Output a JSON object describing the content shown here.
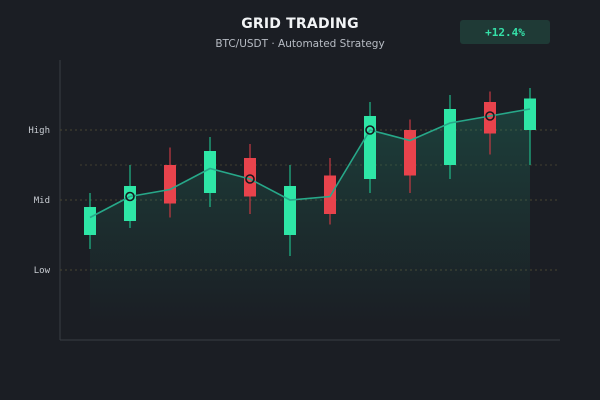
{
  "header": {
    "title": "GRID TRADING",
    "subtitle": "BTC/USDT · Automated Strategy",
    "badge": "+12.4%"
  },
  "colors": {
    "background": "#1b1e24",
    "bullish": "#2ee6a6",
    "bearish": "#e8434c",
    "line": "#27a889",
    "grid": "#4a4632",
    "badge_bg": "#1f3a36",
    "badge_text": "#35e0a8"
  },
  "chart_data": {
    "type": "candlestick",
    "title": "GRID TRADING",
    "subtitle": "BTC/USDT · Automated Strategy",
    "y_tick_labels": [
      {
        "label": "High",
        "value": 0.7
      },
      {
        "label": "Mid",
        "value": 0.5
      },
      {
        "label": "Low",
        "value": 0.3
      }
    ],
    "extra_grid_levels": [
      0.6
    ],
    "ylim": [
      0,
      1
    ],
    "grid": true,
    "candles": [
      {
        "open": 0.4,
        "close": 0.48,
        "high": 0.52,
        "low": 0.36,
        "trend": 0.45,
        "marker": false
      },
      {
        "open": 0.44,
        "close": 0.54,
        "high": 0.6,
        "low": 0.42,
        "trend": 0.51,
        "marker": true
      },
      {
        "open": 0.6,
        "close": 0.49,
        "high": 0.65,
        "low": 0.45,
        "trend": 0.53,
        "marker": false
      },
      {
        "open": 0.52,
        "close": 0.64,
        "high": 0.68,
        "low": 0.48,
        "trend": 0.59,
        "marker": false
      },
      {
        "open": 0.62,
        "close": 0.51,
        "high": 0.66,
        "low": 0.46,
        "trend": 0.56,
        "marker": true
      },
      {
        "open": 0.4,
        "close": 0.54,
        "high": 0.6,
        "low": 0.34,
        "trend": 0.5,
        "marker": false
      },
      {
        "open": 0.57,
        "close": 0.46,
        "high": 0.62,
        "low": 0.43,
        "trend": 0.51,
        "marker": false
      },
      {
        "open": 0.56,
        "close": 0.74,
        "high": 0.78,
        "low": 0.52,
        "trend": 0.7,
        "marker": true
      },
      {
        "open": 0.7,
        "close": 0.57,
        "high": 0.73,
        "low": 0.52,
        "trend": 0.67,
        "marker": false
      },
      {
        "open": 0.6,
        "close": 0.76,
        "high": 0.8,
        "low": 0.56,
        "trend": 0.72,
        "marker": false
      },
      {
        "open": 0.78,
        "close": 0.69,
        "high": 0.81,
        "low": 0.63,
        "trend": 0.74,
        "marker": true
      },
      {
        "open": 0.7,
        "close": 0.79,
        "high": 0.82,
        "low": 0.6,
        "trend": 0.76,
        "marker": false
      }
    ]
  }
}
